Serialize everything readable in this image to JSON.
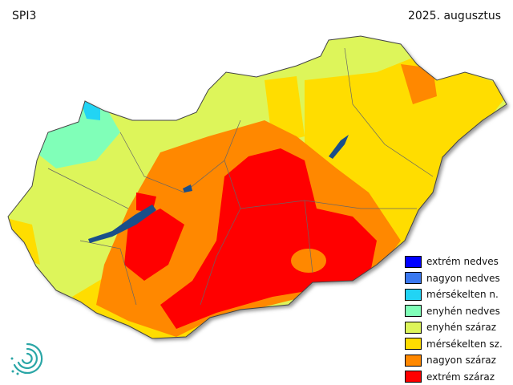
{
  "header": {
    "index": "SPI3",
    "period": "2025. augusztus"
  },
  "legend": [
    {
      "label": "extrém nedves",
      "color": "#0000ff"
    },
    {
      "label": "nagyon nedves",
      "color": "#3a78f0"
    },
    {
      "label": "mérsékelten n.",
      "color": "#22d4f4"
    },
    {
      "label": "enyhén nedves",
      "color": "#80ffb8"
    },
    {
      "label": "enyhén száraz",
      "color": "#ddf55a"
    },
    {
      "label": "mérsékelten sz.",
      "color": "#ffdd00"
    },
    {
      "label": "nagyon száraz",
      "color": "#ff8800"
    },
    {
      "label": "extrém száraz",
      "color": "#ff0000"
    }
  ],
  "colors": {
    "water": "#1a4f8a",
    "border": "#555555"
  }
}
